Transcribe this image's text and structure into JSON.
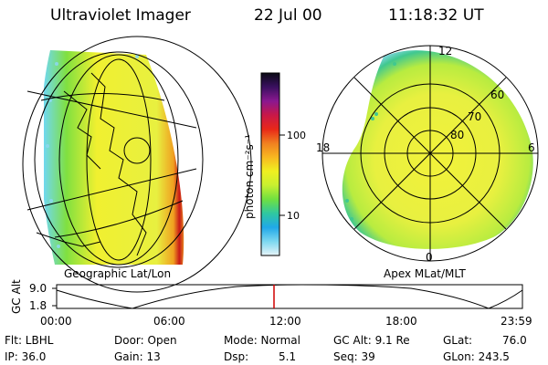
{
  "header": {
    "instrument": "Ultraviolet Imager",
    "date": "22 Jul 00",
    "time": "11:18:32 UT"
  },
  "left_panel": {
    "label": "Geographic Lat/Lon"
  },
  "right_panel": {
    "label": "Apex MLat/MLT",
    "lat_labels": [
      "60",
      "70",
      "80"
    ],
    "mlt_labels": [
      "12",
      "18",
      "6",
      "0"
    ]
  },
  "colorbar": {
    "unit_label": "photon cm⁻²s⁻¹",
    "ticks": [
      "100",
      "10"
    ],
    "colors": [
      "#0a0a14",
      "#3a1060",
      "#8a1890",
      "#c81848",
      "#e82818",
      "#f08020",
      "#f8b820",
      "#f0f020",
      "#c8f030",
      "#70e040",
      "#30c8a0",
      "#20a8e8",
      "#7cd8f0",
      "#e8f4f8"
    ]
  },
  "orbit_plot": {
    "ylabel": "GC Alt",
    "y_ticks": [
      "9.0",
      "1.8"
    ],
    "x_ticks": [
      "00:00",
      "06:00",
      "12:00",
      "18:00",
      "23:59"
    ],
    "line_color": "#000000",
    "marker_color": "#d00000"
  },
  "footer": {
    "flt": "Flt: LBHL",
    "ip": "IP: 36.0",
    "door": "Door: Open",
    "gain": "Gain: 13",
    "mode": "Mode: Normal",
    "dsp": "Dsp:",
    "dsp_val": "5.1",
    "gcalt": "GC Alt: 9.1 Re",
    "seq": "Seq: 39",
    "glat": "GLat:",
    "glat_val": "76.0",
    "glon": "GLon: 243.5"
  }
}
